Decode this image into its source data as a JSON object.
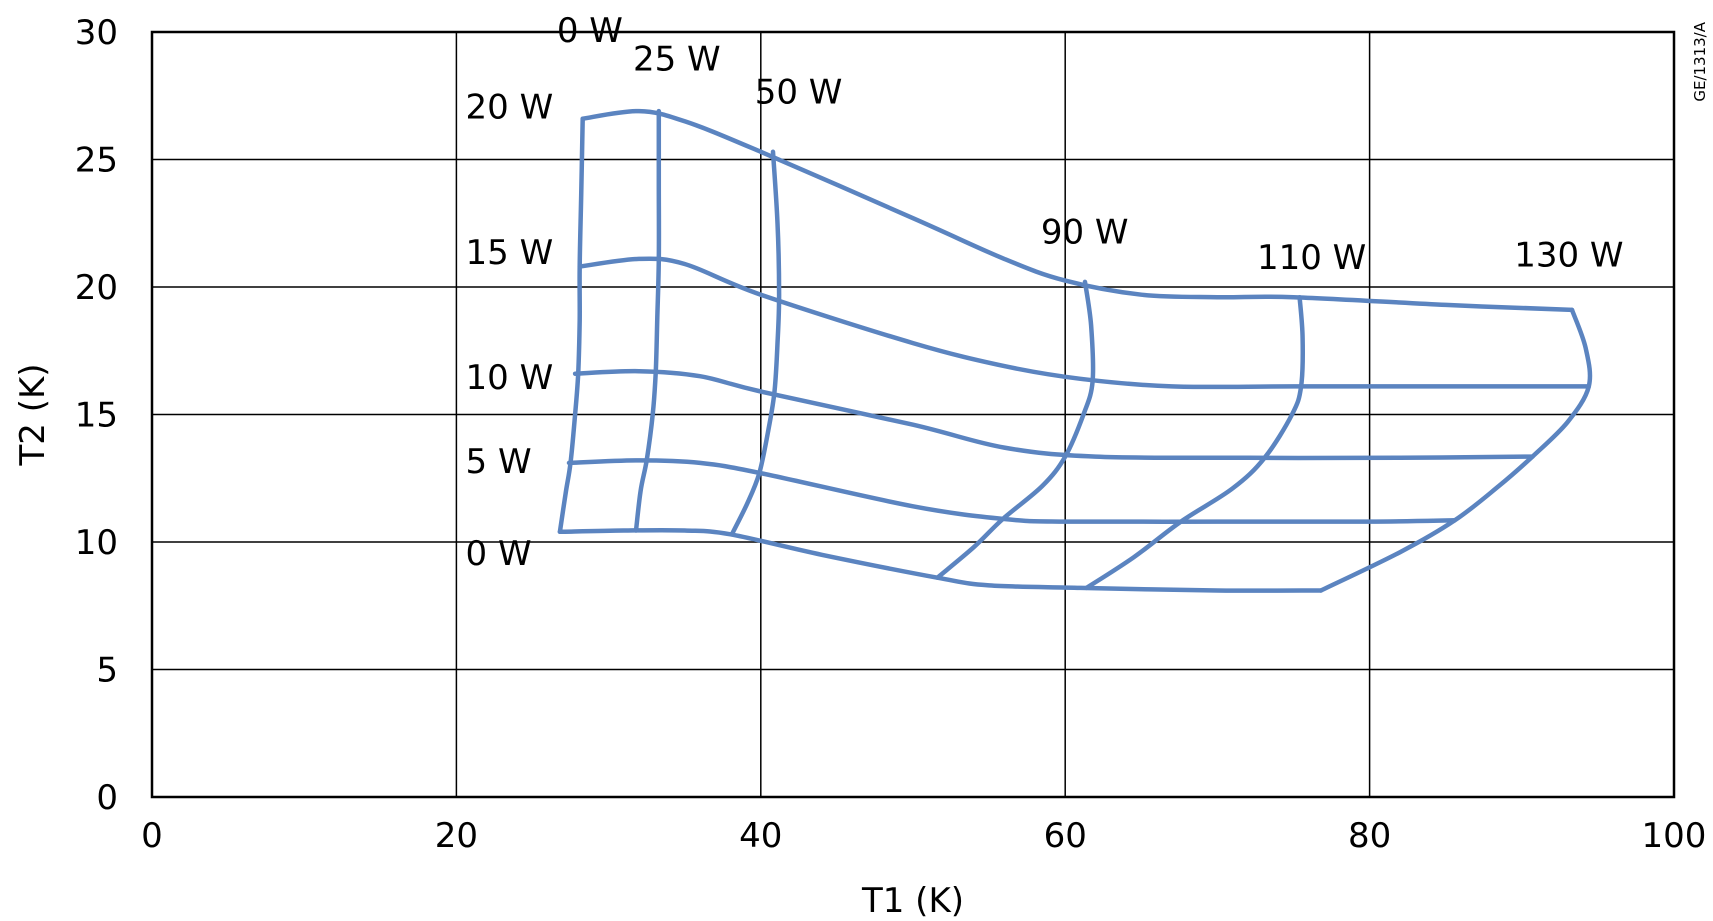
{
  "figure_id": "GE/1313/A",
  "chart_data": {
    "type": "line",
    "title": "",
    "xlabel": "T1 (K)",
    "ylabel": "T2 (K)",
    "xlim": [
      0,
      100
    ],
    "ylim": [
      0,
      30
    ],
    "xticks": [
      0,
      20,
      40,
      60,
      80,
      100
    ],
    "yticks": [
      0,
      5,
      10,
      15,
      20,
      25,
      30
    ],
    "grid": true,
    "constant_stage2_power_curves": [
      {
        "label": "0 W",
        "points": [
          [
            26.8,
            10.4
          ],
          [
            31,
            10.45
          ],
          [
            35,
            10.45
          ],
          [
            38,
            10.3
          ],
          [
            44,
            9.5
          ],
          [
            51.6,
            8.6
          ],
          [
            55,
            8.3
          ],
          [
            61,
            8.2
          ],
          [
            70,
            8.1
          ],
          [
            76.8,
            8.1
          ]
        ]
      },
      {
        "label": "5 W",
        "points": [
          [
            27.4,
            13.1
          ],
          [
            32,
            13.2
          ],
          [
            36,
            13.1
          ],
          [
            40,
            12.7
          ],
          [
            50,
            11.4
          ],
          [
            56,
            10.9
          ],
          [
            60,
            10.8
          ],
          [
            70,
            10.8
          ],
          [
            80,
            10.8
          ],
          [
            85.6,
            10.85
          ]
        ]
      },
      {
        "label": "10 W",
        "points": [
          [
            27.8,
            16.6
          ],
          [
            32,
            16.7
          ],
          [
            36,
            16.5
          ],
          [
            40,
            15.9
          ],
          [
            50,
            14.6
          ],
          [
            56,
            13.7
          ],
          [
            62,
            13.35
          ],
          [
            72,
            13.3
          ],
          [
            82,
            13.3
          ],
          [
            90.7,
            13.35
          ]
        ]
      },
      {
        "label": "15 W",
        "points": [
          [
            28.1,
            20.8
          ],
          [
            32,
            21.1
          ],
          [
            35,
            20.9
          ],
          [
            40,
            19.7
          ],
          [
            50,
            17.8
          ],
          [
            56,
            16.9
          ],
          [
            61,
            16.4
          ],
          [
            67,
            16.1
          ],
          [
            75,
            16.1
          ],
          [
            85,
            16.1
          ],
          [
            94.4,
            16.1
          ]
        ]
      },
      {
        "label": "20 W",
        "points": [
          [
            28.3,
            26.6
          ],
          [
            32,
            26.9
          ],
          [
            35,
            26.5
          ],
          [
            40,
            25.3
          ],
          [
            50,
            22.7
          ],
          [
            56,
            21.1
          ],
          [
            60,
            20.25
          ],
          [
            65,
            19.7
          ],
          [
            70,
            19.6
          ],
          [
            75,
            19.6
          ],
          [
            85,
            19.3
          ],
          [
            93.3,
            19.1
          ]
        ]
      }
    ],
    "constant_stage1_power_curves": [
      {
        "label": "0 W",
        "points": [
          [
            26.8,
            10.4
          ],
          [
            27.2,
            12.0
          ],
          [
            27.5,
            13.1
          ],
          [
            27.8,
            15.0
          ],
          [
            28.0,
            16.6
          ],
          [
            28.1,
            18.7
          ],
          [
            28.1,
            20.8
          ],
          [
            28.2,
            23.6
          ],
          [
            28.3,
            26.6
          ]
        ]
      },
      {
        "label": "25 W",
        "points": [
          [
            31.8,
            10.45
          ],
          [
            32.1,
            12.0
          ],
          [
            32.5,
            13.2
          ],
          [
            32.9,
            15.0
          ],
          [
            33.1,
            16.7
          ],
          [
            33.2,
            18.8
          ],
          [
            33.3,
            21.1
          ],
          [
            33.3,
            24.0
          ],
          [
            33.3,
            26.9
          ]
        ]
      },
      {
        "label": "50 W",
        "points": [
          [
            38.1,
            10.3
          ],
          [
            39.1,
            11.5
          ],
          [
            39.9,
            12.7
          ],
          [
            40.5,
            14.4
          ],
          [
            40.9,
            15.9
          ],
          [
            41.1,
            17.8
          ],
          [
            41.2,
            19.7
          ],
          [
            41.1,
            22.5
          ],
          [
            40.8,
            25.3
          ]
        ]
      },
      {
        "label": "90 W",
        "points": [
          [
            51.6,
            8.6
          ],
          [
            54,
            9.8
          ],
          [
            55.9,
            10.9
          ],
          [
            58.5,
            12.2
          ],
          [
            60,
            13.35
          ],
          [
            61.2,
            15.0
          ],
          [
            61.8,
            16.3
          ],
          [
            61.7,
            18.5
          ],
          [
            61.3,
            20.2
          ]
        ]
      },
      {
        "label": "110 W",
        "points": [
          [
            61.4,
            8.2
          ],
          [
            64.5,
            9.4
          ],
          [
            67.6,
            10.8
          ],
          [
            71,
            12.1
          ],
          [
            73.1,
            13.3
          ],
          [
            74.9,
            15.0
          ],
          [
            75.5,
            16.1
          ],
          [
            75.6,
            18.0
          ],
          [
            75.4,
            19.6
          ]
        ]
      },
      {
        "label": "130 W",
        "points": [
          [
            76.8,
            8.1
          ],
          [
            82,
            9.6
          ],
          [
            85.6,
            10.85
          ],
          [
            88.5,
            12.2
          ],
          [
            90.7,
            13.35
          ],
          [
            93,
            14.7
          ],
          [
            94.4,
            16.1
          ],
          [
            94.2,
            17.6
          ],
          [
            93.3,
            19.1
          ]
        ]
      }
    ],
    "curve_labels": [
      {
        "text": "0 W",
        "x": 26.6,
        "y": 29.6
      },
      {
        "text": "25 W",
        "x": 31.6,
        "y": 28.5
      },
      {
        "text": "50 W",
        "x": 39.6,
        "y": 27.2
      },
      {
        "text": "20 W",
        "x": 20.6,
        "y": 26.6
      },
      {
        "text": "90 W",
        "x": 58.4,
        "y": 21.7
      },
      {
        "text": "110 W",
        "x": 72.6,
        "y": 20.7
      },
      {
        "text": "130 W",
        "x": 89.5,
        "y": 20.8
      },
      {
        "text": "15 W",
        "x": 20.6,
        "y": 20.9
      },
      {
        "text": "10 W",
        "x": 20.6,
        "y": 16.0
      },
      {
        "text": "5 W",
        "x": 20.6,
        "y": 12.7
      },
      {
        "text": "0 W",
        "x": 20.6,
        "y": 9.1
      }
    ],
    "colors": {
      "series": "#5b84c0",
      "grid": "#000000",
      "text": "#000000"
    }
  }
}
